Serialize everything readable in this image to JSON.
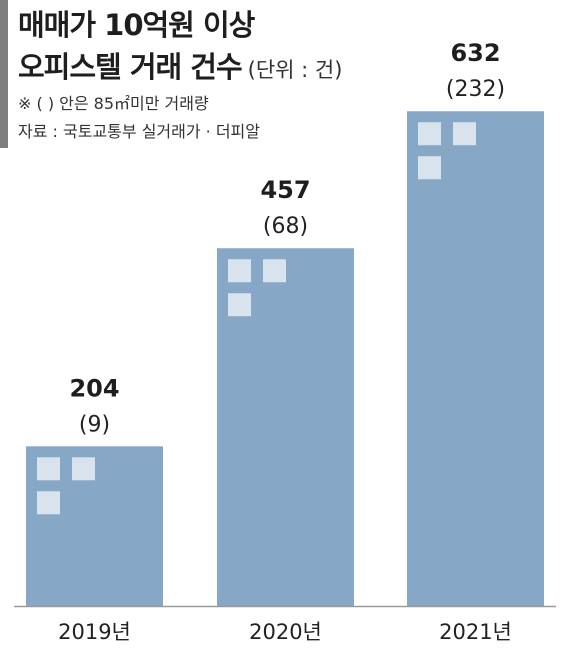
{
  "header": {
    "title_line1": "매매가 10억원 이상",
    "title_line2": "오피스텔 거래 건수",
    "unit": "(단위 : 건)",
    "note": "※ (  ) 안은 85㎡미만 거래량",
    "source": "자료 : 국토교통부 실거래가 · 더피알"
  },
  "colors": {
    "bar": "#87a7c6",
    "bar_square": "#d9e3ee",
    "axis": "#9a9a9a",
    "accent_bar": "#7d7d7d"
  },
  "chart_data": {
    "type": "bar",
    "categories": [
      "2019년",
      "2020년",
      "2021년"
    ],
    "series": [
      {
        "values": [
          204,
          457,
          632
        ]
      },
      {
        "values": [
          9,
          68,
          232
        ]
      }
    ],
    "value_labels": [
      "204",
      "457",
      "632"
    ],
    "sub_labels": [
      "(9)",
      "(68)",
      "(232)"
    ],
    "ylim": [
      0,
      700
    ],
    "grid": false,
    "legend": "none"
  }
}
